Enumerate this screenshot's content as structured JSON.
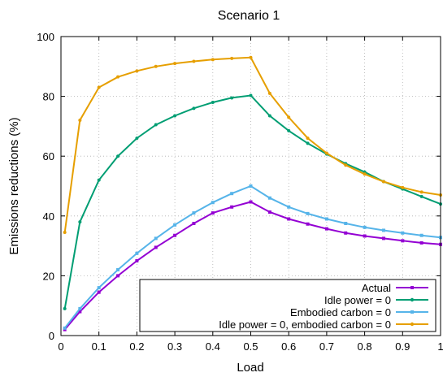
{
  "chart_data": {
    "type": "line",
    "title": "Scenario 1",
    "xlabel": "Load",
    "ylabel": "Emissions reductions (%)",
    "xlim": [
      0,
      1
    ],
    "ylim": [
      0,
      100
    ],
    "xticks": [
      "0",
      "0.1",
      "0.2",
      "0.3",
      "0.4",
      "0.5",
      "0.6",
      "0.7",
      "0.8",
      "0.9",
      "1"
    ],
    "yticks": [
      "0",
      "20",
      "40",
      "60",
      "80",
      "100"
    ],
    "grid": true,
    "legend_position": "bottom-right",
    "x": [
      0.01,
      0.05,
      0.1,
      0.15,
      0.2,
      0.25,
      0.3,
      0.35,
      0.4,
      0.45,
      0.5,
      0.55,
      0.6,
      0.65,
      0.7,
      0.75,
      0.8,
      0.85,
      0.9,
      0.95,
      1.0
    ],
    "series": [
      {
        "name": "Actual",
        "color": "#9400d3",
        "marker": "square",
        "values": [
          2,
          8,
          14.5,
          20,
          25,
          29.5,
          33.5,
          37.5,
          41,
          43,
          44.7,
          41.3,
          39,
          37.3,
          35.7,
          34.3,
          33.3,
          32.5,
          31.7,
          31,
          30.5
        ]
      },
      {
        "name": "Idle power = 0",
        "color": "#009e73",
        "marker": "circle",
        "values": [
          9,
          38,
          52,
          60,
          66,
          70.5,
          73.5,
          76,
          78,
          79.5,
          80.3,
          73.5,
          68.5,
          64.3,
          60.7,
          57.5,
          54.7,
          51.5,
          49,
          46.5,
          44
        ]
      },
      {
        "name": "Embodied carbon = 0",
        "color": "#56b4e9",
        "marker": "square",
        "values": [
          2.5,
          9,
          16,
          22,
          27.5,
          32.5,
          37,
          41,
          44.5,
          47.5,
          50,
          46,
          43,
          40.8,
          39,
          37.5,
          36.2,
          35.2,
          34.3,
          33.5,
          32.8
        ]
      },
      {
        "name": "Idle power = 0, embodied carbon = 0",
        "color": "#e69f00",
        "marker": "circle",
        "values": [
          34.5,
          72,
          83,
          86.5,
          88.5,
          90,
          91,
          91.7,
          92.3,
          92.7,
          93,
          81,
          73,
          66,
          61,
          57,
          54,
          51.5,
          49.5,
          48,
          47
        ]
      }
    ]
  }
}
